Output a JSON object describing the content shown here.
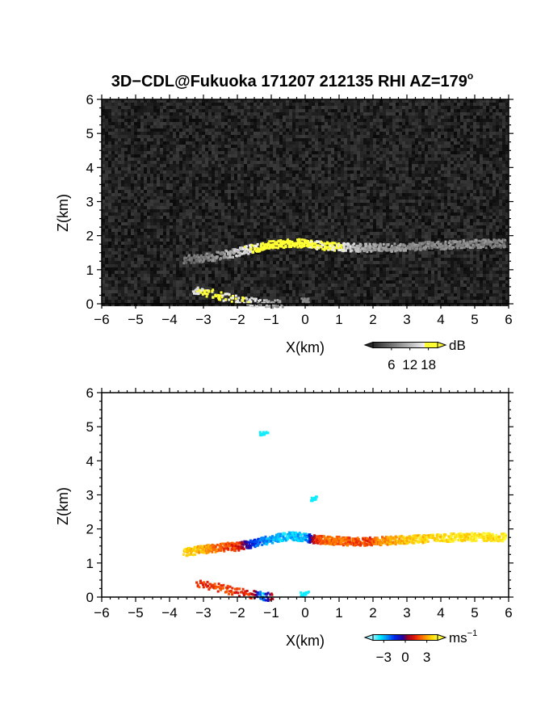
{
  "title_parts": {
    "main": "3D−CDL@Fukuoka 171207 212135 RHI AZ=179",
    "sup": "o"
  },
  "chart_data": [
    {
      "type": "heatmap",
      "panel": "reflectivity",
      "xlabel": "X(km)",
      "ylabel": "Z(km)",
      "xlim": [
        -6,
        6
      ],
      "ylim": [
        0,
        6
      ],
      "xticks": [
        "−6",
        "−5",
        "−4",
        "−3",
        "−2",
        "−1",
        "0",
        "1",
        "2",
        "3",
        "4",
        "5",
        "6"
      ],
      "yticks": [
        "0",
        "1",
        "2",
        "3",
        "4",
        "5",
        "6"
      ],
      "colorbar": {
        "unit": "dB",
        "ticks": [
          "6",
          "12",
          "18"
        ],
        "tick_values": [
          6,
          12,
          18
        ],
        "range": [
          0,
          21
        ]
      },
      "features": [
        {
          "x": [
            -3.6,
            -3.0,
            -2.5,
            -2.0,
            -1.6,
            -1.2,
            -0.8,
            -0.4,
            0.0,
            0.3,
            0.7,
            1.0,
            1.5,
            2.0,
            2.5,
            3.0,
            3.5,
            4.0,
            4.5,
            5.0,
            5.5,
            5.9
          ],
          "z": [
            1.33,
            1.38,
            1.45,
            1.55,
            1.65,
            1.74,
            1.78,
            1.82,
            1.8,
            1.75,
            1.72,
            1.7,
            1.68,
            1.67,
            1.68,
            1.71,
            1.73,
            1.75,
            1.77,
            1.79,
            1.8,
            1.8
          ],
          "dB": [
            6,
            7,
            9,
            14,
            17,
            19,
            20,
            20,
            19,
            18,
            18,
            17,
            12,
            10,
            9,
            9,
            8,
            8,
            8,
            8,
            7,
            7
          ]
        },
        {
          "x": [
            -3.3,
            -3.0,
            -2.6,
            -2.2,
            -1.8,
            -1.4,
            -1.0,
            -0.7
          ],
          "z": [
            0.45,
            0.38,
            0.28,
            0.18,
            0.11,
            0.06,
            0.03,
            0.01
          ],
          "dB": [
            15,
            18,
            18,
            17,
            16,
            14,
            10,
            8
          ]
        },
        {
          "x": [
            0.0
          ],
          "z": [
            0.1
          ],
          "dB": [
            8
          ]
        }
      ]
    },
    {
      "type": "heatmap",
      "panel": "doppler_velocity",
      "xlabel": "X(km)",
      "ylabel": "Z(km)",
      "xlim": [
        -6,
        6
      ],
      "ylim": [
        0,
        6
      ],
      "xticks": [
        "−6",
        "−5",
        "−4",
        "−3",
        "−2",
        "−1",
        "0",
        "1",
        "2",
        "3",
        "4",
        "5",
        "6"
      ],
      "yticks": [
        "0",
        "1",
        "2",
        "3",
        "4",
        "5",
        "6"
      ],
      "colorbar": {
        "unit": "ms",
        "unit_sup": "−1",
        "ticks": [
          "−3",
          "0",
          "3"
        ],
        "tick_values": [
          -3,
          0,
          3
        ],
        "range": [
          -4.5,
          4.5
        ]
      },
      "features": [
        {
          "x": [
            -3.6,
            -3.2,
            -2.8,
            -2.4,
            -2.0,
            -1.6,
            -1.2,
            -0.8,
            -0.4,
            0.0,
            0.3,
            0.6,
            1.0,
            1.4,
            1.8,
            2.2,
            2.6,
            3.0,
            3.5,
            4.0,
            4.5,
            5.0,
            5.5,
            5.9
          ],
          "z": [
            1.35,
            1.4,
            1.45,
            1.5,
            1.52,
            1.6,
            1.68,
            1.78,
            1.82,
            1.78,
            1.72,
            1.7,
            1.68,
            1.66,
            1.66,
            1.68,
            1.7,
            1.72,
            1.75,
            1.77,
            1.79,
            1.8,
            1.8,
            1.78
          ],
          "v": [
            3.5,
            3.4,
            2.6,
            2.0,
            1.5,
            -1.5,
            -2.6,
            -3.0,
            -3.2,
            -2.8,
            1.6,
            2.2,
            2.3,
            2.0,
            1.8,
            2.6,
            3.0,
            3.4,
            3.6,
            3.8,
            3.9,
            4.0,
            4.0,
            4.0
          ]
        },
        {
          "x": [
            -3.2,
            -2.8,
            -2.4,
            -2.0,
            -1.6,
            -1.3,
            -1.0
          ],
          "z": [
            0.45,
            0.36,
            0.28,
            0.18,
            0.11,
            0.06,
            0.03
          ],
          "v": [
            1.5,
            1.8,
            1.8,
            1.6,
            1.4,
            -3.2,
            1.5
          ]
        },
        {
          "x": [
            0.0
          ],
          "z": [
            0.1
          ],
          "v": [
            -3.6
          ]
        },
        {
          "x": [
            -1.2
          ],
          "z": [
            4.8
          ],
          "v": [
            -3.6
          ]
        },
        {
          "x": [
            0.25
          ],
          "z": [
            2.9
          ],
          "v": [
            -3.6
          ]
        }
      ]
    }
  ]
}
